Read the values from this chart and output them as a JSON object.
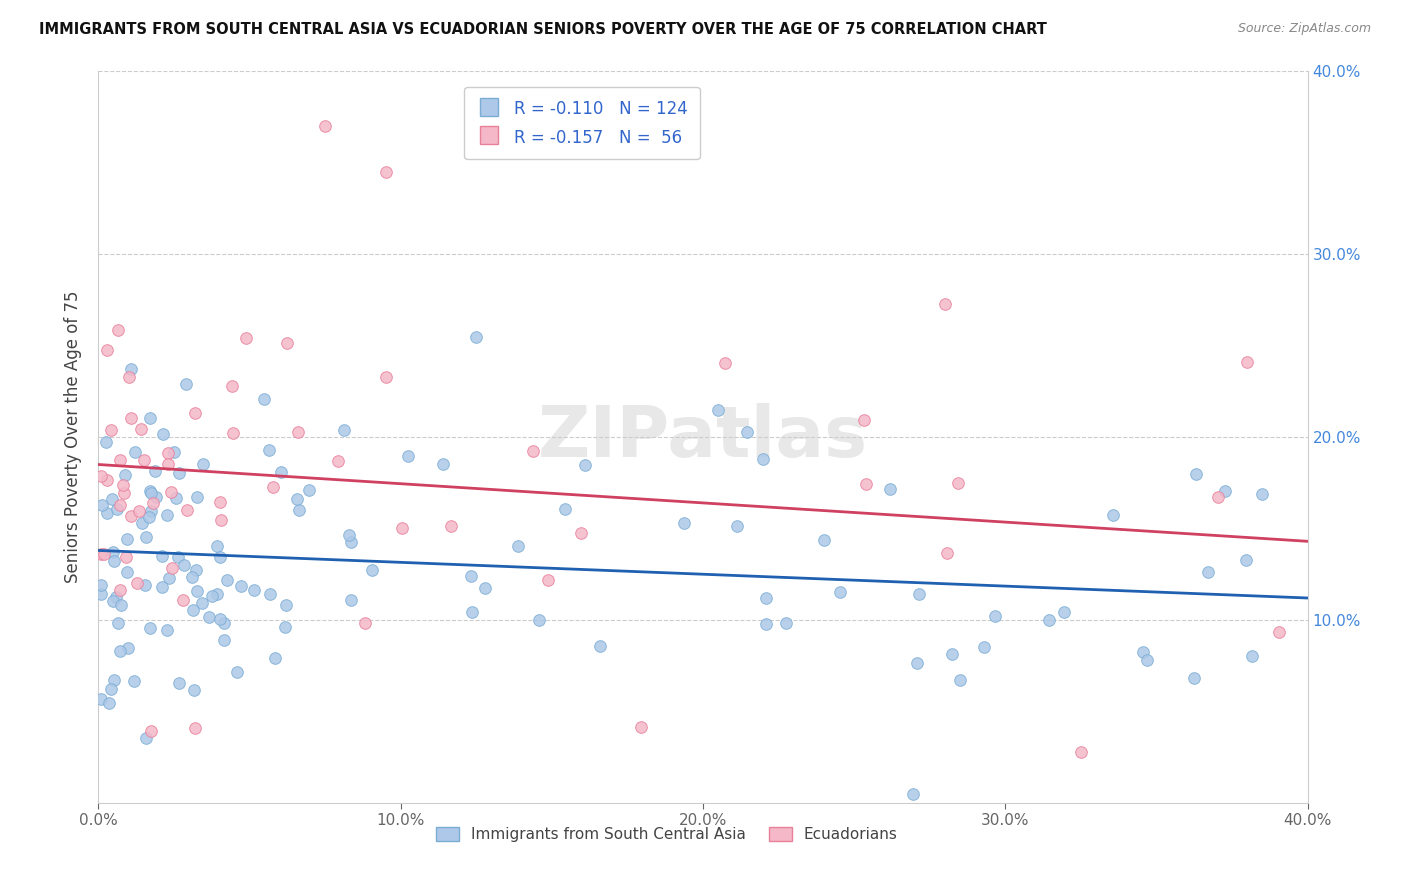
{
  "title": "IMMIGRANTS FROM SOUTH CENTRAL ASIA VS ECUADORIAN SENIORS POVERTY OVER THE AGE OF 75 CORRELATION CHART",
  "source": "Source: ZipAtlas.com",
  "ylabel": "Seniors Poverty Over the Age of 75",
  "xlim": [
    0,
    0.4
  ],
  "ylim": [
    0,
    0.4
  ],
  "blue_color": "#adc8e8",
  "blue_edge": "#7aadd4",
  "pink_color": "#f4b8c8",
  "pink_edge": "#e8809a",
  "line_blue": "#2060b0",
  "line_pink": "#d04060",
  "legend_label1": "Immigrants from South Central Asia",
  "legend_label2": "Ecuadorians",
  "watermark": "ZIPatlas",
  "legend_color": "#3366cc",
  "blue_intercept": 0.138,
  "blue_slope": -0.065,
  "pink_intercept": 0.185,
  "pink_slope": -0.105
}
